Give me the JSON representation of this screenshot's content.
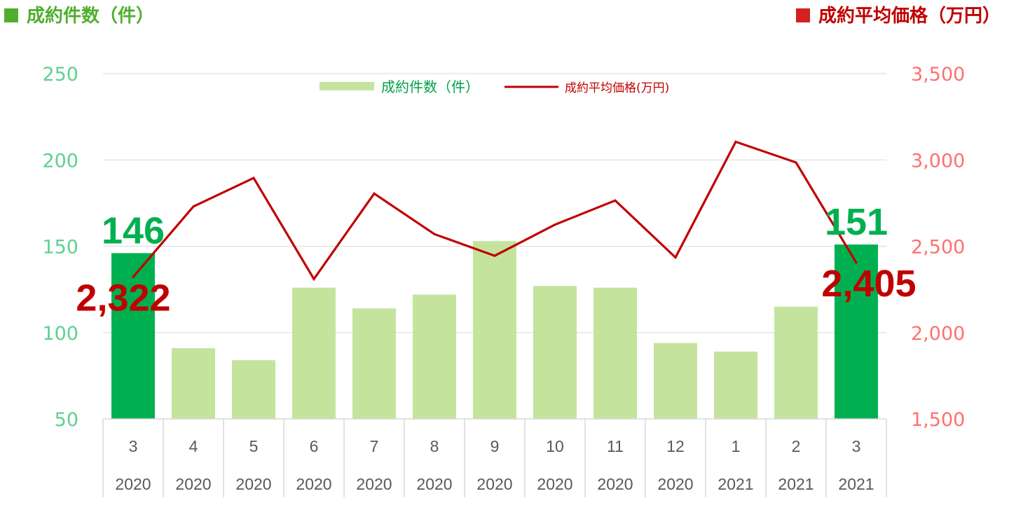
{
  "header": {
    "left_title": "成約件数（件）",
    "right_title": "成約平均価格（万円）"
  },
  "colors": {
    "bar": "#c4e49e",
    "bar_highlight": "#00b050",
    "line": "#c00000",
    "left_axis_text": "#5fd08f",
    "right_axis_text": "#ff7070",
    "header_left": "#4fae2e",
    "header_right": "#c00000"
  },
  "chart_data": {
    "type": "bar",
    "categories": [
      {
        "month": "3",
        "year": "2020"
      },
      {
        "month": "4",
        "year": "2020"
      },
      {
        "month": "5",
        "year": "2020"
      },
      {
        "month": "6",
        "year": "2020"
      },
      {
        "month": "7",
        "year": "2020"
      },
      {
        "month": "8",
        "year": "2020"
      },
      {
        "month": "9",
        "year": "2020"
      },
      {
        "month": "10",
        "year": "2020"
      },
      {
        "month": "11",
        "year": "2020"
      },
      {
        "month": "12",
        "year": "2020"
      },
      {
        "month": "1",
        "year": "2021"
      },
      {
        "month": "2",
        "year": "2021"
      },
      {
        "month": "3",
        "year": "2021"
      }
    ],
    "series": [
      {
        "name": "成約件数（件）",
        "type": "bar",
        "axis": "left",
        "values": [
          146,
          91,
          84,
          126,
          114,
          122,
          153,
          127,
          126,
          94,
          89,
          115,
          151
        ],
        "highlight": [
          true,
          false,
          false,
          false,
          false,
          false,
          false,
          false,
          false,
          false,
          false,
          false,
          true
        ]
      },
      {
        "name": "成約平均価格(万円)",
        "type": "line",
        "axis": "right",
        "values": [
          2322,
          2730,
          2895,
          2310,
          2805,
          2570,
          2445,
          2625,
          2765,
          2435,
          3105,
          2985,
          2405
        ]
      }
    ],
    "left_axis": {
      "min": 50,
      "max": 250,
      "ticks": [
        "50",
        "100",
        "150",
        "200",
        "250"
      ]
    },
    "right_axis": {
      "min": 1500,
      "max": 3500,
      "ticks": [
        "1,500",
        "2,000",
        "2,500",
        "3,000",
        "3,500"
      ]
    },
    "annotations": [
      {
        "series": "bar",
        "index": 0,
        "text": "146"
      },
      {
        "series": "line",
        "index": 0,
        "text": "2,322"
      },
      {
        "series": "bar",
        "index": 12,
        "text": "151"
      },
      {
        "series": "line",
        "index": 12,
        "text": "2,405"
      }
    ],
    "grid": true,
    "legend_position": "top-center"
  }
}
